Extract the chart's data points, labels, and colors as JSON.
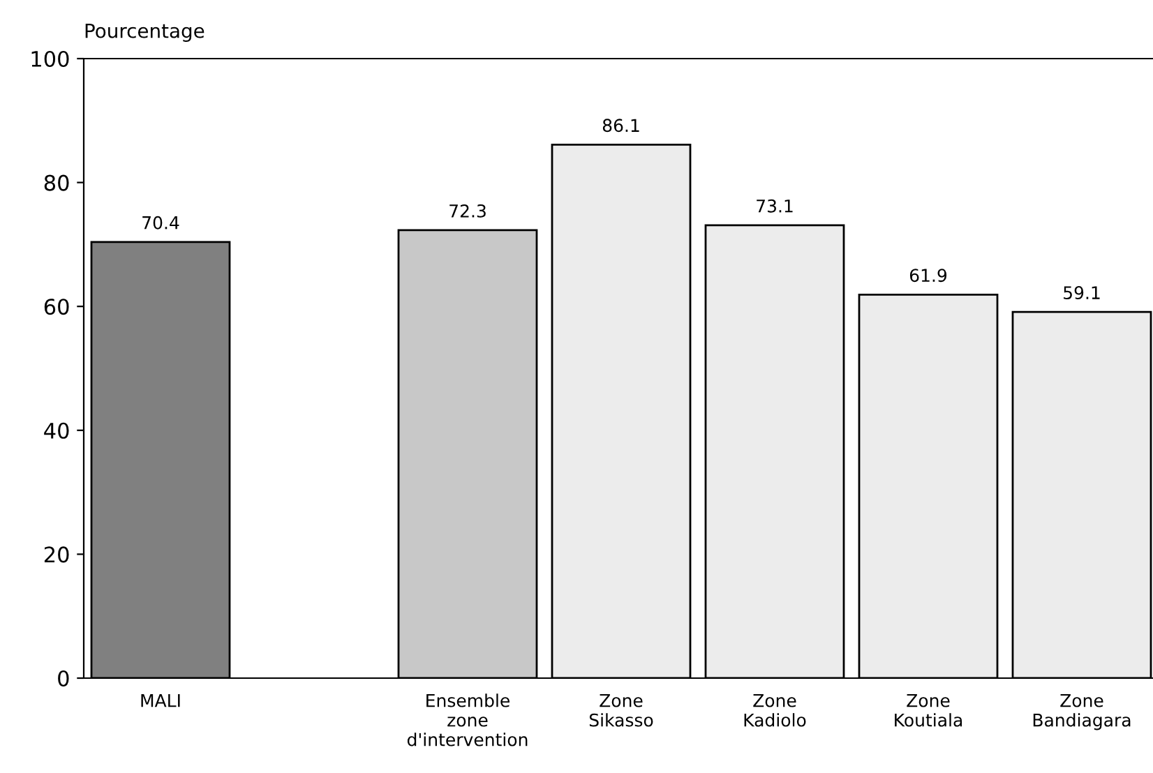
{
  "chart_data": {
    "type": "bar",
    "ylabel": "Pourcentage",
    "categories": [
      "MALI",
      null,
      "Ensemble\nzone\nd'intervention",
      "Zone\nSikasso",
      "Zone\nKadiolo",
      "Zone\nKoutiala",
      "Zone\nBandiagara"
    ],
    "values": [
      70.4,
      null,
      72.3,
      86.1,
      73.1,
      61.9,
      59.1
    ],
    "colors": [
      "#808080",
      "#808080",
      "#c8c8c8",
      "#ececec",
      "#ececec",
      "#ececec",
      "#ececec"
    ],
    "ylim": [
      0,
      100
    ],
    "yticks": [
      0,
      20,
      40,
      60,
      80,
      100
    ],
    "data_labels": true,
    "grid": false,
    "legend": false
  }
}
